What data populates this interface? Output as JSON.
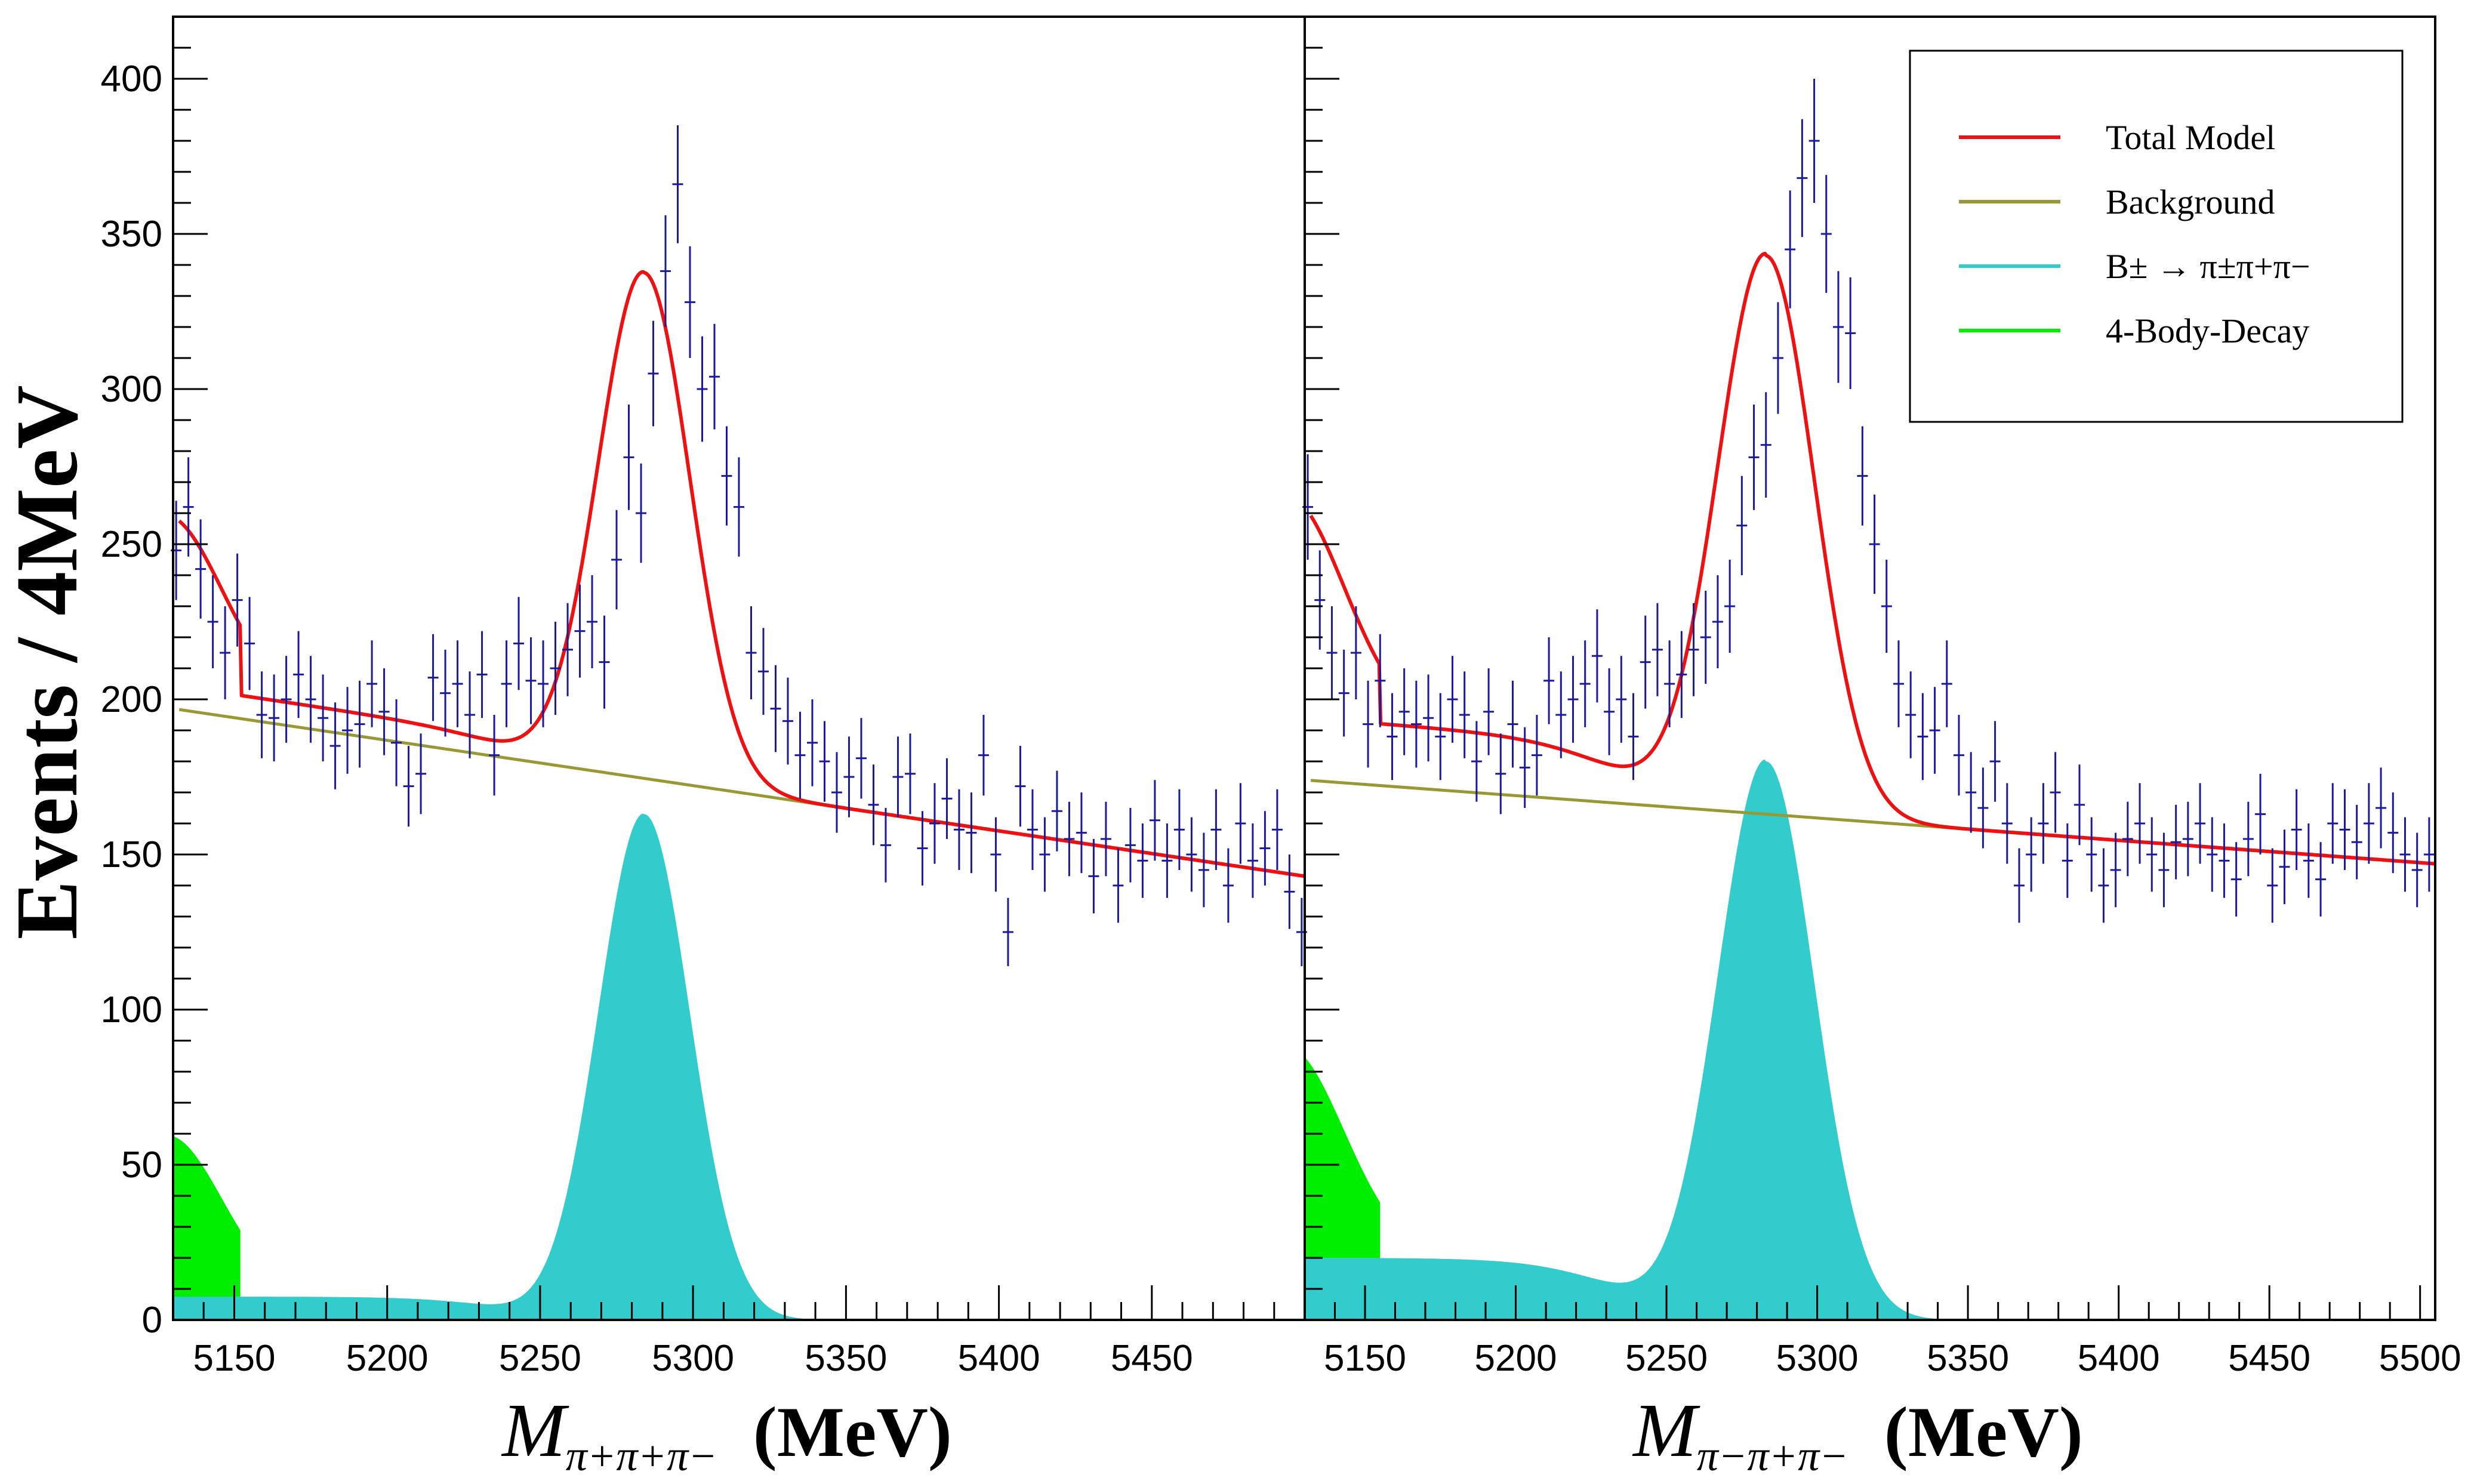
{
  "chart_data": {
    "type": "line",
    "ylabel": "Events / 4MeV",
    "y_ticks": [
      "0",
      "50",
      "100",
      "150",
      "200",
      "250",
      "300",
      "350",
      "400"
    ],
    "ylim": [
      0,
      420
    ],
    "grid": false,
    "panels": [
      {
        "xlabel_main": "M",
        "xlabel_sub": "π+π+π−",
        "xlabel_unit": "(MeV)",
        "xlim": [
          5130,
          5500
        ],
        "x_tick_labels": [
          "5150",
          "5200",
          "5250",
          "5300",
          "5350",
          "5400",
          "5450"
        ],
        "model": {
          "bg": {
            "b0": 197,
            "b1": 143
          },
          "peak": {
            "mu": 5284,
            "sigma": 15,
            "height": 163,
            "tail": 7.5
          },
          "lowtail": {
            "A": 52,
            "center": 5128,
            "width": 18,
            "end": 5152
          }
        },
        "data": {
          "x": [
            5131,
            5135,
            5139,
            5143,
            5147,
            5151,
            5155,
            5159,
            5163,
            5167,
            5171,
            5175,
            5179,
            5183,
            5187,
            5191,
            5195,
            5199,
            5203,
            5207,
            5211,
            5215,
            5219,
            5223,
            5227,
            5231,
            5235,
            5239,
            5243,
            5247,
            5251,
            5255,
            5259,
            5263,
            5267,
            5271,
            5275,
            5279,
            5283,
            5287,
            5291,
            5295,
            5299,
            5303,
            5307,
            5311,
            5315,
            5319,
            5323,
            5327,
            5331,
            5335,
            5339,
            5343,
            5347,
            5351,
            5355,
            5359,
            5363,
            5367,
            5371,
            5375,
            5379,
            5383,
            5387,
            5391,
            5395,
            5399,
            5403,
            5407,
            5411,
            5415,
            5419,
            5423,
            5427,
            5431,
            5435,
            5439,
            5443,
            5447,
            5451,
            5455,
            5459,
            5463,
            5467,
            5471,
            5475,
            5479,
            5483,
            5487,
            5491,
            5495,
            5499
          ],
          "y": [
            248,
            262,
            242,
            225,
            215,
            232,
            218,
            195,
            194,
            200,
            208,
            200,
            194,
            185,
            190,
            192,
            205,
            196,
            186,
            172,
            176,
            207,
            202,
            205,
            195,
            208,
            182,
            205,
            218,
            206,
            205,
            210,
            216,
            222,
            225,
            212,
            245,
            278,
            260,
            305,
            338,
            366,
            328,
            300,
            304,
            272,
            262,
            215,
            209,
            197,
            193,
            182,
            186,
            180,
            170,
            175,
            181,
            166,
            153,
            175,
            176,
            152,
            160,
            168,
            158,
            157,
            182,
            150,
            125,
            172,
            158,
            150,
            164,
            155,
            157,
            143,
            155,
            140,
            153,
            148,
            161,
            148,
            158,
            150,
            145,
            158,
            140,
            160,
            148,
            152,
            158,
            138,
            125
          ],
          "err": [
            16,
            16,
            16,
            15,
            15,
            15,
            15,
            14,
            14,
            14,
            14,
            14,
            14,
            14,
            14,
            14,
            14,
            14,
            14,
            13,
            13,
            14,
            14,
            14,
            14,
            14,
            13,
            14,
            15,
            14,
            14,
            15,
            15,
            15,
            15,
            15,
            16,
            17,
            16,
            17,
            18,
            19,
            18,
            17,
            17,
            16,
            16,
            15,
            14,
            14,
            14,
            14,
            14,
            13,
            13,
            13,
            13,
            13,
            12,
            13,
            13,
            12,
            13,
            13,
            13,
            13,
            13,
            12,
            11,
            13,
            13,
            12,
            13,
            12,
            13,
            12,
            12,
            12,
            12,
            12,
            13,
            12,
            13,
            12,
            12,
            13,
            12,
            13,
            12,
            12,
            13,
            12,
            11
          ]
        }
      },
      {
        "xlabel_main": "M",
        "xlabel_sub": "π−π+π−",
        "xlabel_unit": "(MeV)",
        "xlim": [
          5130,
          5505
        ],
        "x_tick_labels": [
          "5150",
          "5200",
          "5250",
          "5300",
          "5350",
          "5400",
          "5450",
          "5500"
        ],
        "model": {
          "bg": {
            "b0": 174,
            "b1": 147
          },
          "peak": {
            "mu": 5283,
            "sigma": 16,
            "height": 180,
            "tail": 20
          },
          "lowtail": {
            "A": 68,
            "center": 5124,
            "width": 19,
            "end": 5155
          }
        },
        "data": {
          "x": [
            5131,
            5135,
            5139,
            5143,
            5147,
            5151,
            5155,
            5159,
            5163,
            5167,
            5171,
            5175,
            5179,
            5183,
            5187,
            5191,
            5195,
            5199,
            5203,
            5207,
            5211,
            5215,
            5219,
            5223,
            5227,
            5231,
            5235,
            5239,
            5243,
            5247,
            5251,
            5255,
            5259,
            5263,
            5267,
            5271,
            5275,
            5279,
            5283,
            5287,
            5291,
            5295,
            5299,
            5303,
            5307,
            5311,
            5315,
            5319,
            5323,
            5327,
            5331,
            5335,
            5339,
            5343,
            5347,
            5351,
            5355,
            5359,
            5363,
            5367,
            5371,
            5375,
            5379,
            5383,
            5387,
            5391,
            5395,
            5399,
            5403,
            5407,
            5411,
            5415,
            5419,
            5423,
            5427,
            5431,
            5435,
            5439,
            5443,
            5447,
            5451,
            5455,
            5459,
            5463,
            5467,
            5471,
            5475,
            5479,
            5483,
            5487,
            5491,
            5495,
            5499,
            5503
          ],
          "y": [
            262,
            232,
            215,
            202,
            215,
            192,
            206,
            188,
            196,
            192,
            194,
            188,
            200,
            195,
            180,
            196,
            176,
            192,
            178,
            182,
            206,
            195,
            200,
            205,
            214,
            196,
            200,
            188,
            212,
            216,
            205,
            208,
            216,
            220,
            225,
            230,
            256,
            278,
            282,
            310,
            345,
            368,
            380,
            350,
            320,
            318,
            272,
            250,
            230,
            205,
            195,
            188,
            190,
            205,
            182,
            170,
            165,
            180,
            160,
            140,
            150,
            160,
            170,
            148,
            166,
            150,
            140,
            145,
            155,
            160,
            150,
            145,
            154,
            155,
            160,
            150,
            148,
            142,
            155,
            163,
            140,
            146,
            158,
            148,
            142,
            160,
            158,
            154,
            160,
            165,
            157,
            150,
            145,
            150
          ],
          "err": [
            17,
            16,
            15,
            14,
            15,
            14,
            15,
            14,
            14,
            14,
            14,
            14,
            14,
            14,
            13,
            14,
            13,
            14,
            13,
            13,
            14,
            14,
            14,
            14,
            15,
            14,
            14,
            14,
            15,
            15,
            14,
            14,
            15,
            15,
            15,
            15,
            16,
            17,
            17,
            18,
            19,
            19,
            20,
            19,
            18,
            18,
            16,
            16,
            15,
            14,
            14,
            14,
            14,
            14,
            13,
            13,
            13,
            13,
            13,
            12,
            12,
            13,
            13,
            12,
            13,
            12,
            12,
            12,
            12,
            13,
            12,
            12,
            12,
            12,
            13,
            12,
            12,
            12,
            12,
            13,
            12,
            12,
            13,
            12,
            12,
            13,
            13,
            12,
            13,
            13,
            13,
            12,
            12,
            12
          ]
        }
      }
    ],
    "legend": {
      "placement": "top-right",
      "entries": [
        {
          "label": "Total Model",
          "color": "#ee1111",
          "kind": "line"
        },
        {
          "label": "Background",
          "color": "#999933",
          "kind": "line"
        },
        {
          "label": "B± → π±π+π−",
          "color": "#33cccc",
          "kind": "line"
        },
        {
          "label": "4-Body-Decay",
          "color": "#00ee00",
          "kind": "line"
        }
      ]
    },
    "colors": {
      "total": "#ee1111",
      "background": "#999933",
      "signal": "#33cccc",
      "lowtail": "#00ee00",
      "data": "#1a1a9a"
    }
  }
}
